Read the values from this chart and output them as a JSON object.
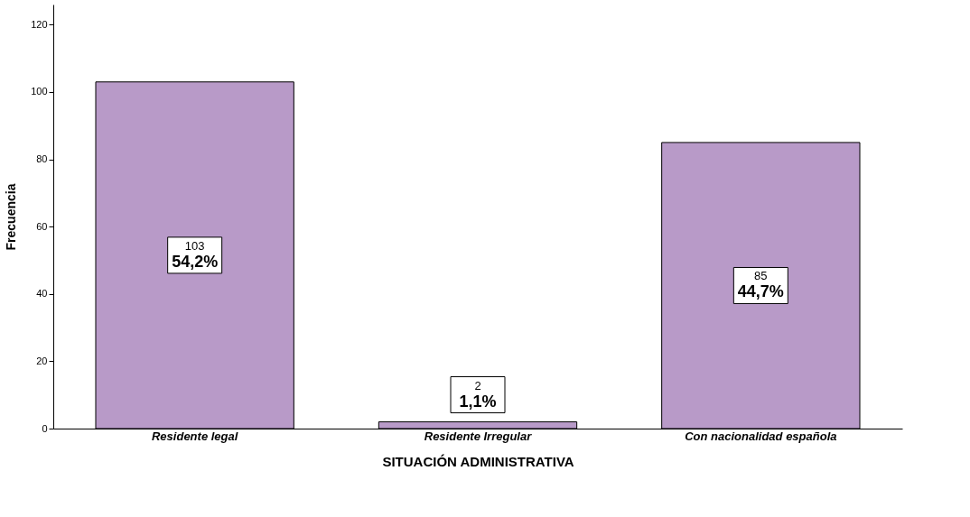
{
  "chart_data": {
    "type": "bar",
    "xlabel": "SITUACIÓN ADMINISTRATIVA",
    "ylabel": "Frecuencia",
    "categories": [
      "Residente legal",
      "Residente Irregular",
      "Con nacionalidad española"
    ],
    "values": [
      103,
      2,
      85
    ],
    "value_labels": [
      "103\n54,2%",
      "2\n1,1%",
      "85\n44,7%"
    ],
    "color": "#b89ac8",
    "ylim": [
      0,
      126
    ],
    "yticks": [
      0,
      20,
      40,
      60,
      80,
      100,
      120
    ],
    "grid": false
  }
}
